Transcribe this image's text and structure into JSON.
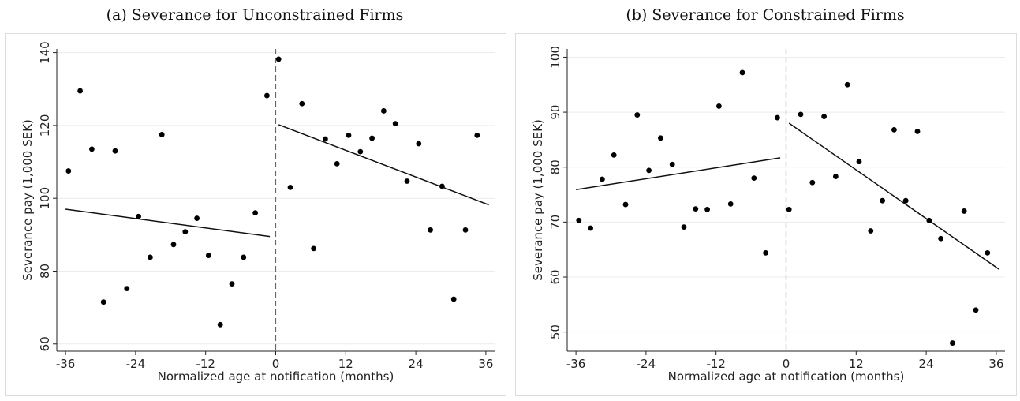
{
  "chart_data": [
    {
      "type": "scatter",
      "title": "(a) Severance for Unconstrained Firms",
      "xlabel": "Normalized age at notification (months)",
      "ylabel": "Severance pay (1,000 SEK)",
      "xlim": [
        -37.5,
        37.5
      ],
      "ylim": [
        58,
        141
      ],
      "xticks": [
        -36,
        -24,
        -12,
        0,
        12,
        24,
        36
      ],
      "xtick_labels": [
        "-36",
        "-24",
        "-12",
        "0",
        "12",
        "24",
        "36"
      ],
      "yticks": [
        60,
        80,
        100,
        120,
        140
      ],
      "ytick_labels": [
        "60",
        "80",
        "100",
        "120",
        "140"
      ],
      "grid": "horizontal",
      "cutoff": 0,
      "points": [
        {
          "x": -35.5,
          "y": 107.5
        },
        {
          "x": -33.5,
          "y": 129.5
        },
        {
          "x": -31.5,
          "y": 113.5
        },
        {
          "x": -29.5,
          "y": 71.5
        },
        {
          "x": -27.5,
          "y": 113
        },
        {
          "x": -25.5,
          "y": 75.2
        },
        {
          "x": -23.5,
          "y": 95
        },
        {
          "x": -21.5,
          "y": 83.8
        },
        {
          "x": -19.5,
          "y": 117.5
        },
        {
          "x": -17.5,
          "y": 87.3
        },
        {
          "x": -15.5,
          "y": 90.8
        },
        {
          "x": -13.5,
          "y": 94.5
        },
        {
          "x": -11.5,
          "y": 84.3
        },
        {
          "x": -9.5,
          "y": 65.3
        },
        {
          "x": -7.5,
          "y": 76.5
        },
        {
          "x": -5.5,
          "y": 83.8
        },
        {
          "x": -3.5,
          "y": 96
        },
        {
          "x": -1.5,
          "y": 128.2
        },
        {
          "x": 0.5,
          "y": 138.2
        },
        {
          "x": 2.5,
          "y": 103
        },
        {
          "x": 4.5,
          "y": 126
        },
        {
          "x": 6.5,
          "y": 86.2
        },
        {
          "x": 8.5,
          "y": 116.3
        },
        {
          "x": 10.5,
          "y": 109.5
        },
        {
          "x": 12.5,
          "y": 117.3
        },
        {
          "x": 14.5,
          "y": 112.8
        },
        {
          "x": 16.5,
          "y": 116.5
        },
        {
          "x": 18.5,
          "y": 124
        },
        {
          "x": 20.5,
          "y": 120.5
        },
        {
          "x": 22.5,
          "y": 104.7
        },
        {
          "x": 24.5,
          "y": 115
        },
        {
          "x": 26.5,
          "y": 91.3
        },
        {
          "x": 28.5,
          "y": 103.3
        },
        {
          "x": 30.5,
          "y": 72.3
        },
        {
          "x": 32.5,
          "y": 91.3
        },
        {
          "x": 34.5,
          "y": 117.3
        }
      ],
      "fit_lines": [
        {
          "x": [
            -36,
            -1
          ],
          "y": [
            97,
            89.5
          ]
        },
        {
          "x": [
            0.5,
            36.5
          ],
          "y": [
            120.2,
            98.2
          ]
        }
      ]
    },
    {
      "type": "scatter",
      "title": "(b) Severance for Constrained Firms",
      "xlabel": "Normalized age at notification (months)",
      "ylabel": "Severance pay (1,000 SEK)",
      "xlim": [
        -37.5,
        37.5
      ],
      "ylim": [
        46.5,
        101.5
      ],
      "xticks": [
        -36,
        -24,
        -12,
        0,
        12,
        24,
        36
      ],
      "xtick_labels": [
        "-36",
        "-24",
        "-12",
        "0",
        "12",
        "24",
        "36"
      ],
      "yticks": [
        50,
        60,
        70,
        80,
        90,
        100
      ],
      "ytick_labels": [
        "50",
        "60",
        "70",
        "80",
        "90",
        "100"
      ],
      "grid": "horizontal",
      "cutoff": 0,
      "points": [
        {
          "x": -35.5,
          "y": 70.3
        },
        {
          "x": -33.5,
          "y": 68.9
        },
        {
          "x": -31.5,
          "y": 77.8
        },
        {
          "x": -29.5,
          "y": 82.2
        },
        {
          "x": -27.5,
          "y": 73.2
        },
        {
          "x": -25.5,
          "y": 89.5
        },
        {
          "x": -23.5,
          "y": 79.4
        },
        {
          "x": -21.5,
          "y": 85.3
        },
        {
          "x": -19.5,
          "y": 80.5
        },
        {
          "x": -17.5,
          "y": 69.1
        },
        {
          "x": -15.5,
          "y": 72.4
        },
        {
          "x": -13.5,
          "y": 72.3
        },
        {
          "x": -11.5,
          "y": 91.1
        },
        {
          "x": -9.5,
          "y": 73.3
        },
        {
          "x": -7.5,
          "y": 97.2
        },
        {
          "x": -5.5,
          "y": 78
        },
        {
          "x": -3.5,
          "y": 64.4
        },
        {
          "x": -1.5,
          "y": 89
        },
        {
          "x": 0.5,
          "y": 72.3
        },
        {
          "x": 2.5,
          "y": 89.6
        },
        {
          "x": 4.5,
          "y": 77.2
        },
        {
          "x": 6.5,
          "y": 89.2
        },
        {
          "x": 8.5,
          "y": 78.3
        },
        {
          "x": 10.5,
          "y": 95
        },
        {
          "x": 12.5,
          "y": 81
        },
        {
          "x": 14.5,
          "y": 68.4
        },
        {
          "x": 16.5,
          "y": 73.9
        },
        {
          "x": 18.5,
          "y": 86.8
        },
        {
          "x": 20.5,
          "y": 73.9
        },
        {
          "x": 22.5,
          "y": 86.5
        },
        {
          "x": 24.5,
          "y": 70.3
        },
        {
          "x": 26.5,
          "y": 67
        },
        {
          "x": 28.5,
          "y": 48
        },
        {
          "x": 30.5,
          "y": 72
        },
        {
          "x": 32.5,
          "y": 54
        },
        {
          "x": 34.5,
          "y": 64.4
        }
      ],
      "fit_lines": [
        {
          "x": [
            -36,
            -1
          ],
          "y": [
            75.9,
            81.7
          ]
        },
        {
          "x": [
            0.5,
            36.5
          ],
          "y": [
            88,
            61.4
          ]
        }
      ]
    }
  ]
}
